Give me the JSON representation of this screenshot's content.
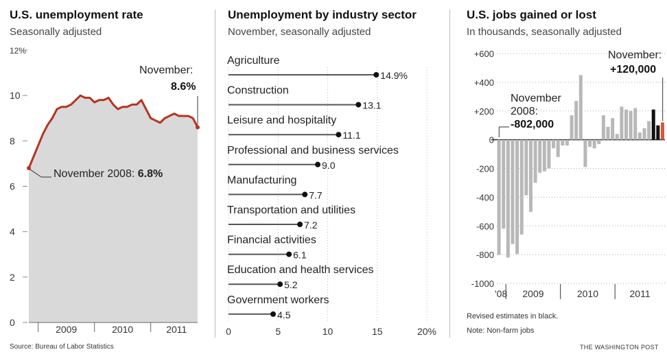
{
  "panel1": {
    "title": "U.S. unemployment rate",
    "subtitle": "Seasonally adjusted",
    "source": "Source: Bureau of Labor Statistics",
    "annotation_end_label": "November:",
    "annotation_end_value": "8.6%",
    "annotation_start_label": "November 2008: ",
    "annotation_start_value": "6.8%"
  },
  "panel2": {
    "title": "Unemployment by industry sector",
    "subtitle": "November, seasonally adjusted"
  },
  "panel3": {
    "title": "U.S. jobs gained or lost",
    "subtitle": "In thousands, seasonally adjusted",
    "annotation_end_label": "November:",
    "annotation_end_value": "+120,000",
    "annotation_start_label_1": "November",
    "annotation_start_label_2": "2008:",
    "annotation_start_value": "-802,000",
    "note1": "Revised estimates in black.",
    "note2": "Note: Non-farm jobs"
  },
  "credit": "THE WASHINGTON POST",
  "colors": {
    "line": "#b5331f",
    "area": "#d9d9d9",
    "bar_gray": "#b8b8b8",
    "bar_black": "#111111",
    "bar_red": "#d9573b"
  },
  "chart_data": [
    {
      "type": "area",
      "title": "U.S. unemployment rate",
      "subtitle": "Seasonally adjusted",
      "ylim": [
        0,
        12
      ],
      "yticks": [
        "0",
        "2",
        "4",
        "6",
        "8",
        "10",
        "12%"
      ],
      "xticks": [
        "2009",
        "2010",
        "2011"
      ],
      "x": [
        "2008-11",
        "2008-12",
        "2009-01",
        "2009-02",
        "2009-03",
        "2009-04",
        "2009-05",
        "2009-06",
        "2009-07",
        "2009-08",
        "2009-09",
        "2009-10",
        "2009-11",
        "2009-12",
        "2010-01",
        "2010-02",
        "2010-03",
        "2010-04",
        "2010-05",
        "2010-06",
        "2010-07",
        "2010-08",
        "2010-09",
        "2010-10",
        "2010-11",
        "2010-12",
        "2011-01",
        "2011-02",
        "2011-03",
        "2011-04",
        "2011-05",
        "2011-06",
        "2011-07",
        "2011-08",
        "2011-09",
        "2011-10",
        "2011-11"
      ],
      "values": [
        6.8,
        7.3,
        7.8,
        8.3,
        8.7,
        9.0,
        9.4,
        9.5,
        9.5,
        9.6,
        9.8,
        10.0,
        9.9,
        9.9,
        9.7,
        9.8,
        9.8,
        9.9,
        9.6,
        9.4,
        9.5,
        9.5,
        9.6,
        9.6,
        9.8,
        9.4,
        9.0,
        8.9,
        8.8,
        9.0,
        9.1,
        9.2,
        9.1,
        9.1,
        9.1,
        9.0,
        8.6
      ]
    },
    {
      "type": "bar",
      "title": "Unemployment by industry sector",
      "subtitle": "November, seasonally adjusted",
      "categories": [
        "Agriculture",
        "Construction",
        "Leisure and hospitality",
        "Professional and business services",
        "Manufacturing",
        "Transportation and utilities",
        "Financial activities",
        "Education and health services",
        "Government workers"
      ],
      "values": [
        14.9,
        13.1,
        11.1,
        9.0,
        7.7,
        7.2,
        6.1,
        5.2,
        4.5
      ],
      "value_labels": [
        "14.9%",
        "13.1",
        "11.1",
        "9.0",
        "7.7",
        "7.2",
        "6.1",
        "5.2",
        "4.5"
      ],
      "xlim": [
        0,
        20
      ],
      "xticks": [
        "0",
        "5",
        "10",
        "15",
        "20%"
      ]
    },
    {
      "type": "bar",
      "title": "U.S. jobs gained or lost",
      "subtitle": "In thousands, seasonally adjusted",
      "ylim": [
        -1000,
        600
      ],
      "yticks": [
        "-1000",
        "-800",
        "-600",
        "-400",
        "-200",
        "0",
        "+200",
        "+400",
        "+600"
      ],
      "xticks": [
        "'08",
        "2009",
        "2010",
        "2011"
      ],
      "x": [
        "2008-11",
        "2008-12",
        "2009-01",
        "2009-02",
        "2009-03",
        "2009-04",
        "2009-05",
        "2009-06",
        "2009-07",
        "2009-08",
        "2009-09",
        "2009-10",
        "2009-11",
        "2009-12",
        "2010-01",
        "2010-02",
        "2010-03",
        "2010-04",
        "2010-05",
        "2010-06",
        "2010-07",
        "2010-08",
        "2010-09",
        "2010-10",
        "2010-11",
        "2010-12",
        "2011-01",
        "2011-02",
        "2011-03",
        "2011-04",
        "2011-05",
        "2011-06",
        "2011-07",
        "2011-08",
        "2011-09",
        "2011-10",
        "2011-11"
      ],
      "values": [
        -802,
        -619,
        -820,
        -726,
        -796,
        -660,
        -387,
        -502,
        -300,
        -230,
        -220,
        -200,
        -60,
        -120,
        -40,
        -40,
        170,
        270,
        450,
        -190,
        -50,
        -60,
        -30,
        170,
        90,
        150,
        40,
        230,
        210,
        200,
        220,
        50,
        80,
        130,
        210,
        100,
        120
      ],
      "revised": [
        false,
        false,
        false,
        false,
        false,
        false,
        false,
        false,
        false,
        false,
        false,
        false,
        false,
        false,
        false,
        false,
        false,
        false,
        false,
        false,
        false,
        false,
        false,
        false,
        false,
        false,
        false,
        false,
        false,
        false,
        false,
        false,
        false,
        false,
        true,
        true,
        false
      ]
    }
  ]
}
